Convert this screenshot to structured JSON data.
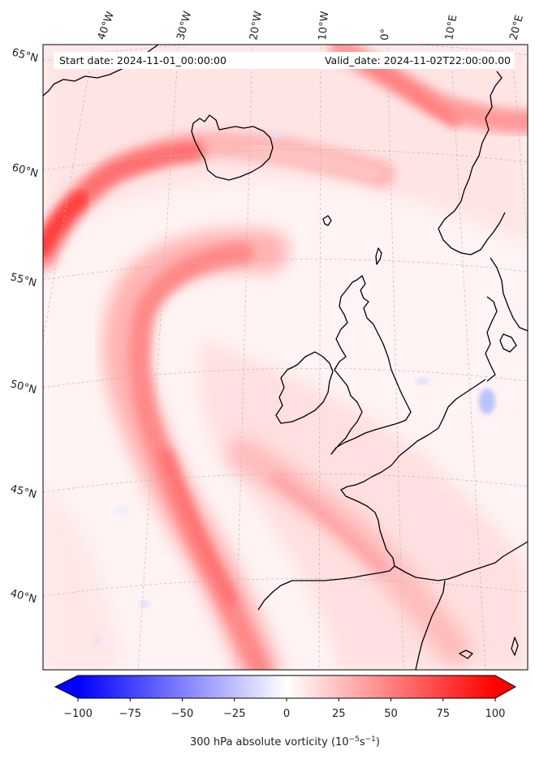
{
  "header": {
    "start_date": "Start date: 2024-11-01_00:00:00",
    "valid_date": "Valid_date: 2024-11-02T22:00:00.00"
  },
  "graticule": {
    "lon_labels": [
      "40°W",
      "30°W",
      "20°W",
      "10°W",
      "0°",
      "10°E",
      "20°E"
    ],
    "lat_labels": [
      "65°N",
      "60°N",
      "55°N",
      "50°N",
      "45°N",
      "40°N"
    ]
  },
  "colorbar": {
    "tick_labels": [
      "−100",
      "−75",
      "−50",
      "−25",
      "0",
      "25",
      "50",
      "75",
      "100"
    ],
    "label_main": "300 hPa absolute vorticity (10",
    "label_exp1": "−5",
    "label_mid": "s",
    "label_exp2": "−1",
    "label_end": ")",
    "vmin": -100,
    "vmax": 100,
    "colormap": "bwr"
  },
  "colors": {
    "coastline": "#000000",
    "gridline": "#b8b8b8",
    "positive": "#ff0000",
    "negative": "#0000ff"
  }
}
